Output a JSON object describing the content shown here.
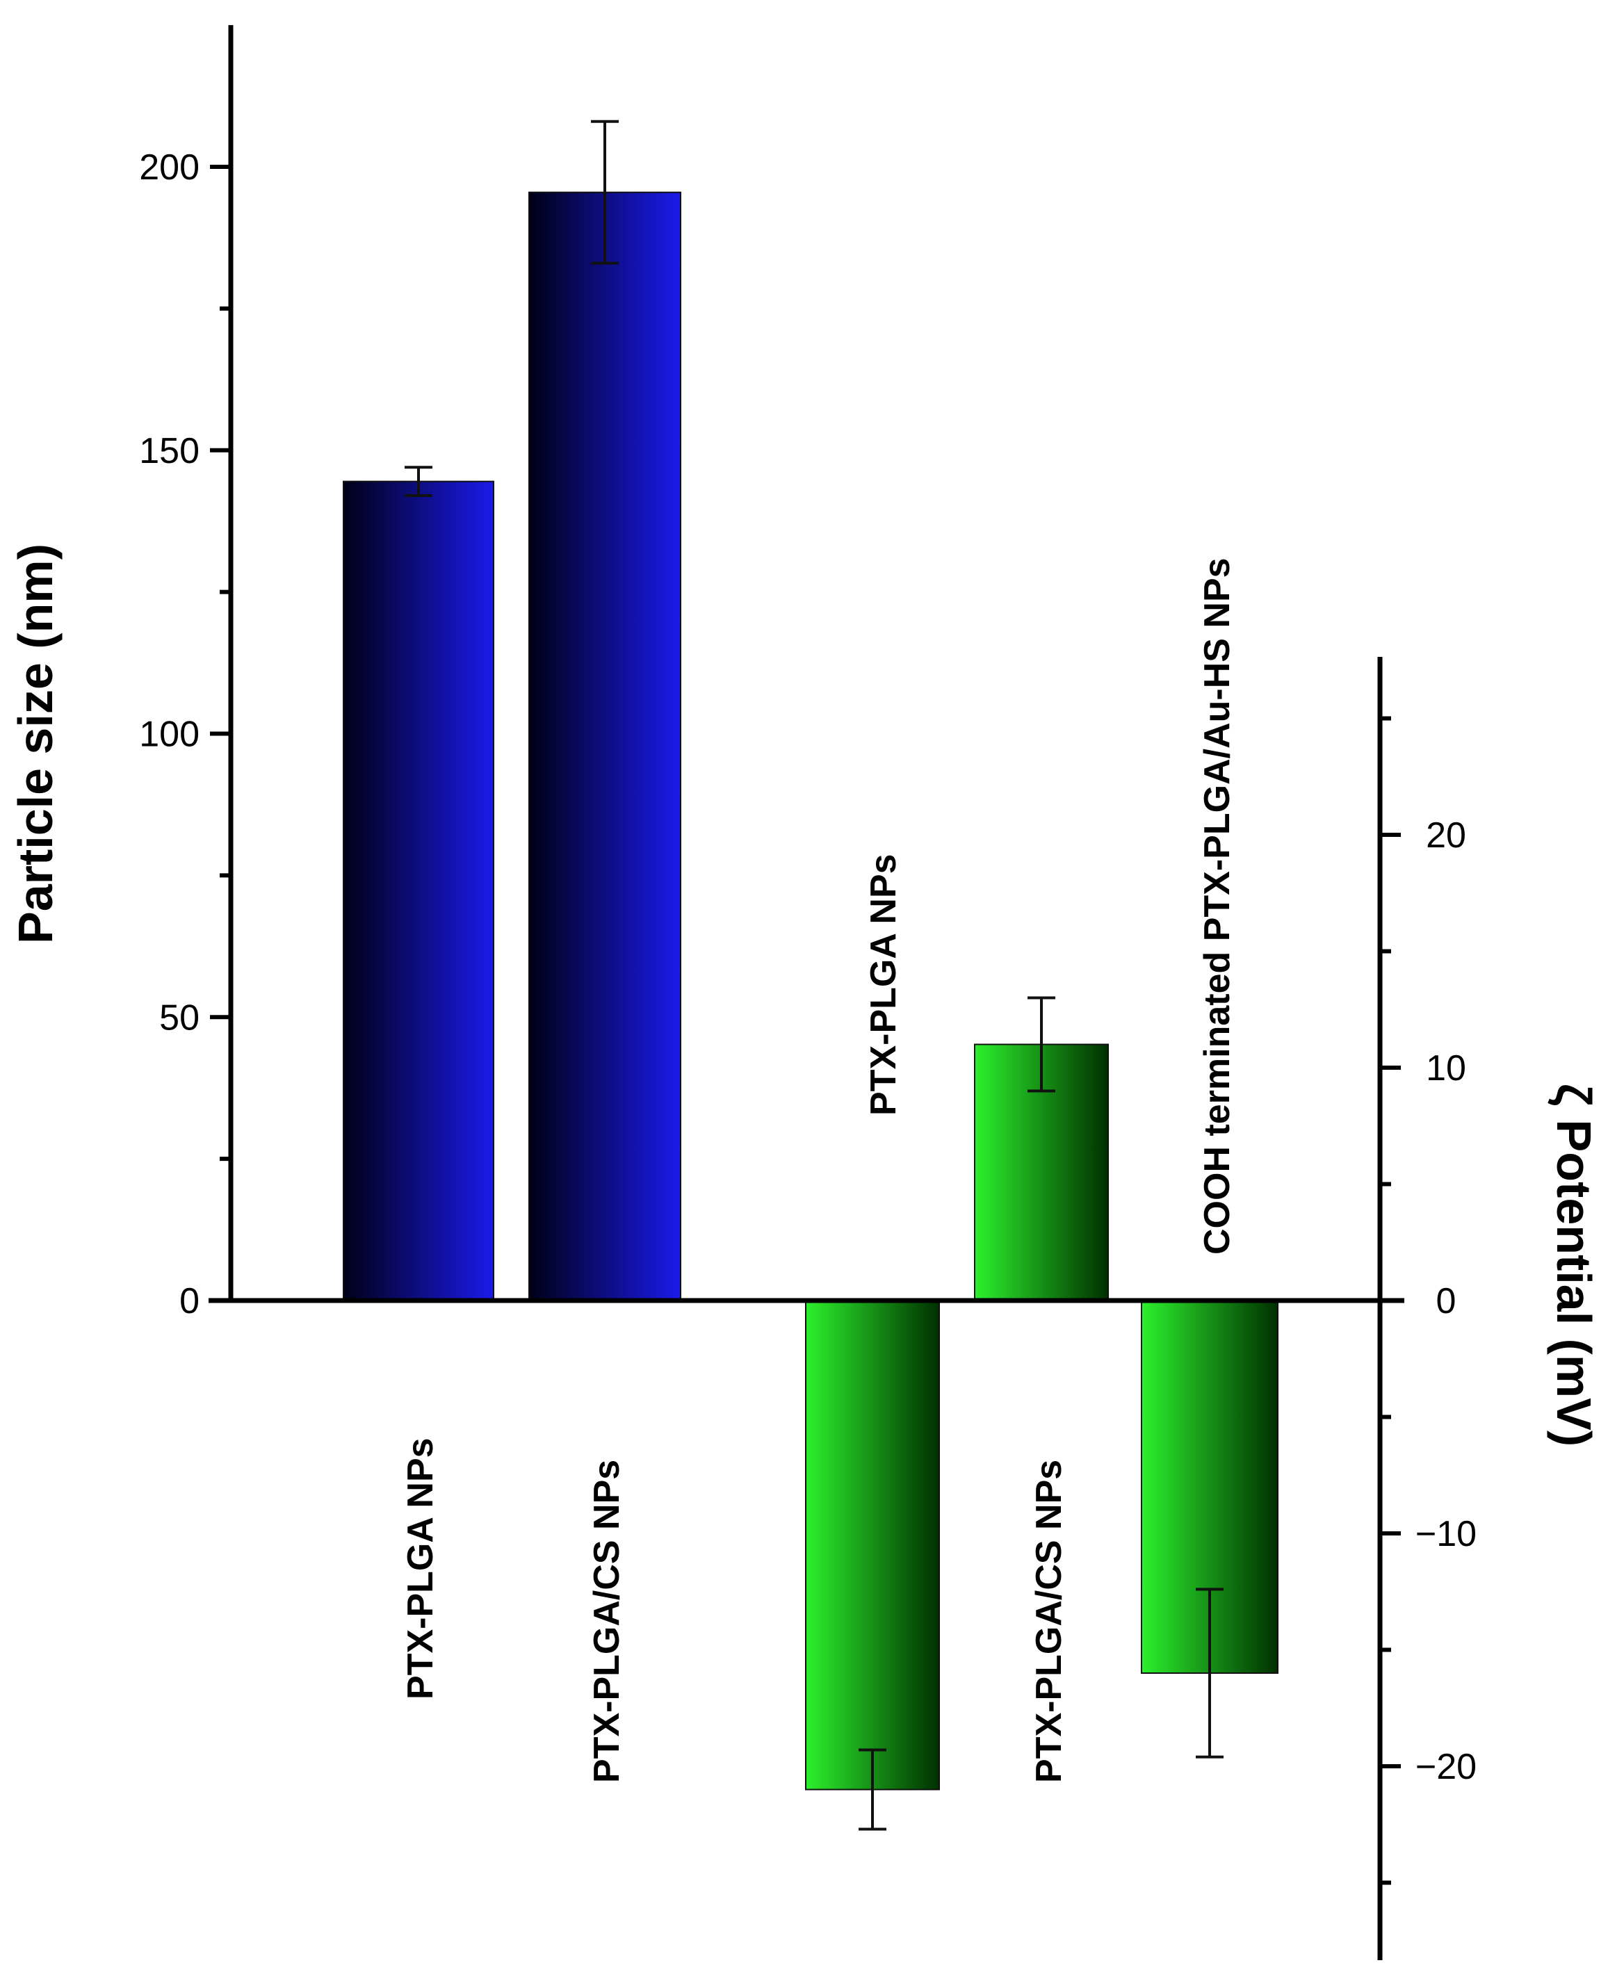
{
  "chart_data": [
    {
      "type": "bar",
      "ylabel": "Particle size (nm)",
      "ylim": [
        0,
        225
      ],
      "yticks": [
        0,
        50,
        100,
        150,
        200
      ],
      "categories": [
        "PTX-PLGA NPs",
        "PTX-PLGA/CS NPs"
      ],
      "values": [
        144.5,
        195.5
      ],
      "errors": [
        2.5,
        12.5
      ],
      "bar_color": "#1a1adb"
    },
    {
      "type": "bar",
      "ylabel": "ζ Potential (mV)",
      "ylim": [
        -29,
        28
      ],
      "yticks": [
        -20,
        -10,
        0,
        10,
        20
      ],
      "categories": [
        "PTX-PLGA NPs",
        "PTX-PLGA/CS NPs",
        "COOH terminated PTX-PLGA/Au-HS NPs"
      ],
      "values": [
        -21,
        11,
        -16
      ],
      "errors": [
        1.7,
        2,
        3.6
      ],
      "bar_color": "#22e022"
    }
  ]
}
